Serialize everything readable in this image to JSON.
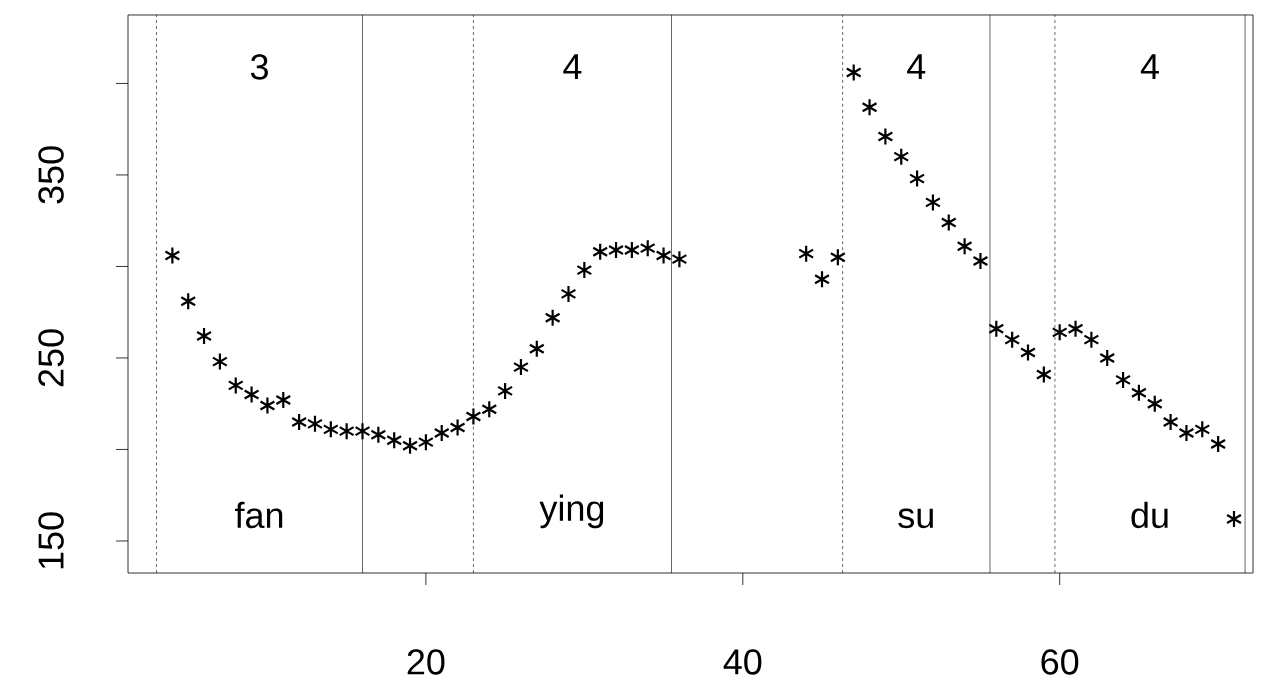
{
  "chart_data": {
    "type": "scatter",
    "marker": "cross",
    "grid": false,
    "x": [
      4,
      5,
      6,
      7,
      8,
      9,
      10,
      11,
      12,
      13,
      14,
      15,
      16,
      17,
      18,
      19,
      20,
      21,
      22,
      23,
      24,
      25,
      26,
      27,
      28,
      29,
      30,
      31,
      32,
      33,
      34,
      35,
      36,
      44,
      45,
      46,
      47,
      48,
      49,
      50,
      51,
      52,
      53,
      54,
      55,
      56,
      57,
      58,
      59,
      60,
      61,
      62,
      63,
      64,
      65,
      66,
      67,
      68,
      69,
      70,
      71
    ],
    "series": [
      {
        "color": "#000000",
        "values": [
          306,
          281,
          262,
          248,
          235,
          230,
          224,
          227,
          215,
          214,
          211,
          210,
          210,
          208,
          205,
          202,
          204,
          209,
          212,
          218,
          222,
          232,
          245,
          255,
          272,
          285,
          298,
          308,
          309,
          309,
          310,
          306,
          304,
          307,
          293,
          305,
          406,
          387,
          371,
          360,
          348,
          335,
          324,
          311,
          303,
          266,
          260,
          253,
          241,
          264,
          266,
          260,
          250,
          238,
          231,
          225,
          215,
          209,
          211,
          203,
          162
        ]
      }
    ],
    "xlim": [
      1.2,
      72.2
    ],
    "ylim": [
      132.5,
      437.4
    ],
    "xticks": [
      20,
      40,
      60
    ],
    "yticks": [
      150,
      {
        "value": 200,
        "label": null
      },
      250,
      {
        "value": 300,
        "label": null
      },
      350,
      {
        "value": 400,
        "label": null
      }
    ],
    "ref_lines": [
      {
        "axis": "x",
        "value": 3,
        "color": "#000000",
        "line_style": "dashed"
      },
      {
        "axis": "x",
        "value": 16,
        "color": "#000000",
        "line_style": "solid"
      },
      {
        "axis": "x",
        "value": 23,
        "color": "#000000",
        "line_style": "dashed"
      },
      {
        "axis": "x",
        "value": 35.5,
        "color": "#000000",
        "line_style": "solid"
      },
      {
        "axis": "x",
        "value": 46.3,
        "color": "#000000",
        "line_style": "dashed"
      },
      {
        "axis": "x",
        "value": 55.6,
        "color": "#000000",
        "line_style": "solid"
      },
      {
        "axis": "x",
        "value": 59.7,
        "color": "#000000",
        "line_style": "dashed"
      },
      {
        "axis": "x",
        "value": 71.7,
        "color": "#000000",
        "line_style": "solid"
      }
    ],
    "annotations": [
      "3",
      "4",
      "4",
      "4",
      "fan",
      "ying",
      "su",
      "du"
    ]
  }
}
